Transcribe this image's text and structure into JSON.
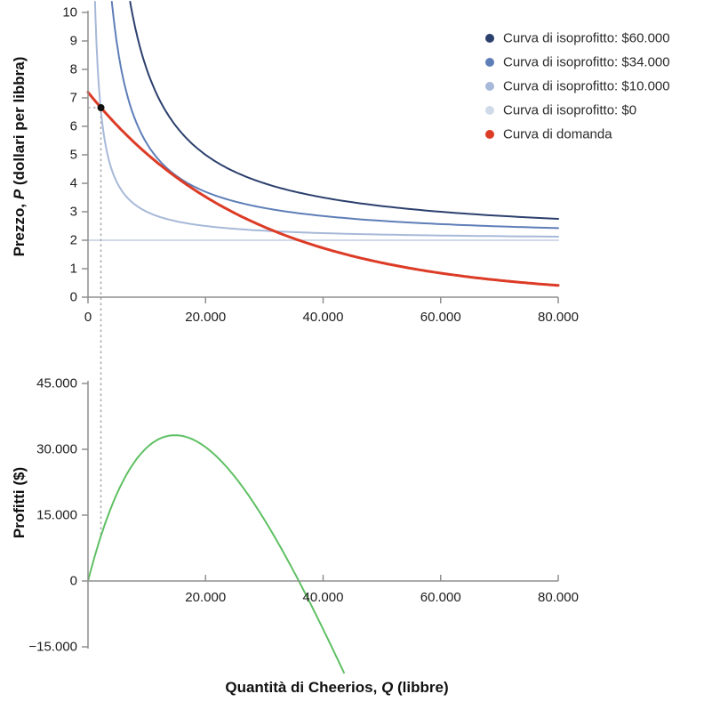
{
  "figure": {
    "top_panel": {
      "ylabel": {
        "pre": "Prezzo, ",
        "em": "P",
        "post": " (dollari per libbra)"
      },
      "y_ticks": {
        "values": [
          0,
          1,
          2,
          3,
          4,
          5,
          6,
          7,
          8,
          9,
          10
        ],
        "labels": [
          "0",
          "1",
          "2",
          "3",
          "4",
          "5",
          "6",
          "7",
          "8",
          "9",
          "10"
        ]
      },
      "x_ticks": {
        "values": [
          0,
          20000,
          40000,
          60000,
          80000
        ],
        "labels": [
          "0",
          "20.000",
          "40.000",
          "60.000",
          "80.000"
        ]
      }
    },
    "bottom_panel": {
      "ylabel": "Profitti ($)",
      "xlabel": {
        "pre": "Quantità di Cheerios, ",
        "em": "Q",
        "post": " (libbre)"
      },
      "y_ticks": {
        "values": [
          45000,
          30000,
          15000,
          0,
          -15000
        ],
        "labels": [
          "45.000",
          "30.000",
          "15.000",
          "0",
          "−15.000"
        ]
      },
      "x_ticks": {
        "values": [
          20000,
          40000,
          60000,
          80000
        ],
        "labels": [
          "20.000",
          "40.000",
          "60.000",
          "80.000"
        ]
      }
    },
    "legend": {
      "items": [
        {
          "id": "isoprofit-60000",
          "label": "Curva di isoprofitto: $60.000",
          "color": "#2c406e"
        },
        {
          "id": "isoprofit-34000",
          "label": "Curva di isoprofitto: $34.000",
          "color": "#5e7eb8"
        },
        {
          "id": "isoprofit-10000",
          "label": "Curva di isoprofitto: $10.000",
          "color": "#a7b9d8"
        },
        {
          "id": "isoprofit-0",
          "label": "Curva di isoprofitto: $0",
          "color": "#d0dae8"
        },
        {
          "id": "demand",
          "label": "Curva di domanda",
          "color": "#dc3b26"
        }
      ]
    },
    "colors": {
      "axis": "#8f8f8f",
      "tick_text": "#1e1e1e",
      "dotted_guide": "#a9a9a9",
      "marked_point": "#111111",
      "profit_curve": "#5fc063",
      "background": "#ffffff"
    }
  },
  "chart_data": [
    {
      "type": "line",
      "panel": "price",
      "title": "",
      "ylabel": "Prezzo, P (dollari per libbra)",
      "xlabel": "Quantità di Cheerios, Q (libbre)",
      "xlim": [
        0,
        80000
      ],
      "ylim": [
        0,
        10
      ],
      "grid": false,
      "legend_position": "top-right",
      "unit_cost": 2,
      "series": [
        {
          "id": "isoprofit-60000",
          "name": "Curva di isoprofitto: $60.000",
          "color": "#2c406e",
          "level": 60000,
          "formula": "P = 2 + 60000/Q",
          "points": [
            [
              7500,
              10
            ],
            [
              10000,
              8
            ],
            [
              15000,
              6
            ],
            [
              20000,
              5
            ],
            [
              30000,
              4
            ],
            [
              40000,
              3.5
            ],
            [
              60000,
              3
            ],
            [
              80000,
              2.75
            ]
          ]
        },
        {
          "id": "isoprofit-34000",
          "name": "Curva di isoprofitto: $34.000",
          "color": "#5e7eb8",
          "level": 34000,
          "formula": "P = 2 + 34000/Q",
          "points": [
            [
              4250,
              10
            ],
            [
              10000,
              5.4
            ],
            [
              15000,
              4.27
            ],
            [
              20000,
              3.7
            ],
            [
              30000,
              3.13
            ],
            [
              40000,
              2.85
            ],
            [
              60000,
              2.57
            ],
            [
              80000,
              2.43
            ]
          ]
        },
        {
          "id": "isoprofit-10000",
          "name": "Curva di isoprofitto: $10.000",
          "color": "#a7b9d8",
          "level": 10000,
          "formula": "P = 2 + 10000/Q",
          "points": [
            [
              1250,
              10
            ],
            [
              5000,
              4
            ],
            [
              10000,
              3
            ],
            [
              20000,
              2.5
            ],
            [
              40000,
              2.25
            ],
            [
              80000,
              2.13
            ]
          ]
        },
        {
          "id": "isoprofit-0",
          "name": "Curva di isoprofitto: $0",
          "color": "#d0dae8",
          "level": 0,
          "formula": "P = 2",
          "points": [
            [
              0,
              2
            ],
            [
              80000,
              2
            ]
          ]
        },
        {
          "id": "demand",
          "name": "Curva di domanda",
          "color": "#dc3b26",
          "params": {
            "p0": 7.2,
            "qscale": 28000
          },
          "points": [
            [
              0,
              7.2
            ],
            [
              2200,
              6.66
            ],
            [
              5000,
              6.02
            ],
            [
              10000,
              5.04
            ],
            [
              15000,
              4.21
            ],
            [
              20000,
              3.52
            ],
            [
              25000,
              2.95
            ],
            [
              30000,
              2.47
            ],
            [
              36000,
              2.0
            ],
            [
              40000,
              1.73
            ],
            [
              50000,
              1.21
            ],
            [
              60000,
              0.84
            ],
            [
              70000,
              0.59
            ],
            [
              80000,
              0.41
            ]
          ]
        }
      ],
      "marked_point": {
        "q": 2200,
        "p": 6.66
      }
    },
    {
      "type": "line",
      "panel": "profit",
      "title": "",
      "ylabel": "Profitti ($)",
      "xlabel": "Quantità di Cheerios, Q (libbre)",
      "xlim": [
        0,
        80000
      ],
      "ylim": [
        -21000,
        45000
      ],
      "grid": false,
      "series": [
        {
          "id": "profit",
          "name": "Profitti",
          "color": "#5fc063",
          "params": {
            "p0": 7.2,
            "qscale": 28000,
            "unit_cost": 2
          },
          "points": [
            [
              0,
              0
            ],
            [
              2200,
              10250
            ],
            [
              5000,
              20100
            ],
            [
              10000,
              30400
            ],
            [
              14800,
              33200
            ],
            [
              20000,
              30400
            ],
            [
              25000,
              23750
            ],
            [
              30000,
              14100
            ],
            [
              36000,
              0
            ],
            [
              40000,
              -10800
            ],
            [
              44300,
              -21000
            ]
          ]
        }
      ]
    }
  ]
}
